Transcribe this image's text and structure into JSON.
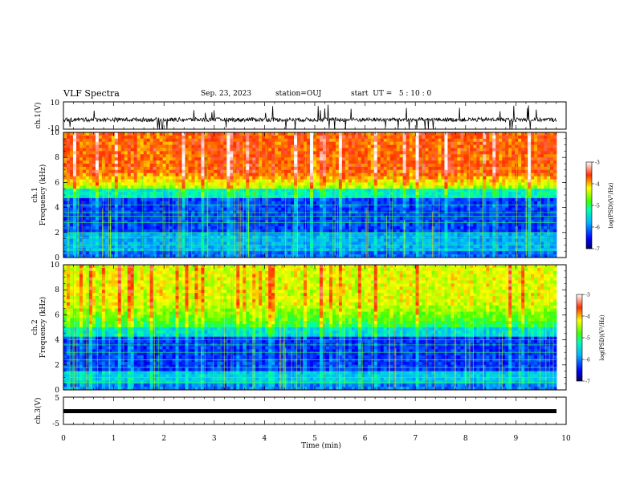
{
  "header": {
    "title": "VLF Spectra",
    "date": "Sep. 23, 2023",
    "station": "station=OUJ",
    "start": "start  UT =   5 : 10 : 0"
  },
  "chart_data": [
    {
      "type": "line",
      "name": "ch1-waveform",
      "ylabel": "ch.1(V)",
      "ylim": [
        -10,
        10
      ],
      "ytick_labels": [
        "10",
        "-10"
      ],
      "xlim": [
        0,
        10
      ]
    },
    {
      "type": "heatmap",
      "name": "ch1-spectrogram",
      "ylabel_line1": "ch.1",
      "ylabel_line2": "Frequency (kHz)",
      "ylim": [
        0,
        10
      ],
      "ytick_labels": [
        "0",
        "2",
        "4",
        "6",
        "8",
        "10"
      ],
      "xlim": [
        0,
        10
      ],
      "colorbar": {
        "label": "log(PSD)(V²/Hz)",
        "range": [
          -7,
          -3
        ],
        "tick_labels": [
          "-3",
          "-4",
          "-5",
          "-6",
          "-7"
        ]
      }
    },
    {
      "type": "heatmap",
      "name": "ch2-spectrogram",
      "ylabel_line1": "ch.2",
      "ylabel_line2": "Frequency (kHz)",
      "ylim": [
        0,
        10
      ],
      "ytick_labels": [
        "0",
        "2",
        "4",
        "6",
        "8",
        "10"
      ],
      "xlim": [
        0,
        10
      ],
      "colorbar": {
        "label": "log(PSD)(V²/Hz)",
        "range": [
          -7,
          -3
        ],
        "tick_labels": [
          "-3",
          "-4",
          "-5",
          "-6",
          "-7"
        ]
      }
    },
    {
      "type": "line",
      "name": "ch3-waveform",
      "ylabel": "ch.3(V)",
      "ylim": [
        -5,
        5
      ],
      "ytick_labels": [
        "5",
        "-5"
      ],
      "xlim": [
        0,
        10
      ],
      "xlabel": "Time (min)",
      "xtick_labels": [
        "0",
        "1",
        "2",
        "3",
        "4",
        "5",
        "6",
        "7",
        "8",
        "9",
        "10"
      ]
    }
  ]
}
